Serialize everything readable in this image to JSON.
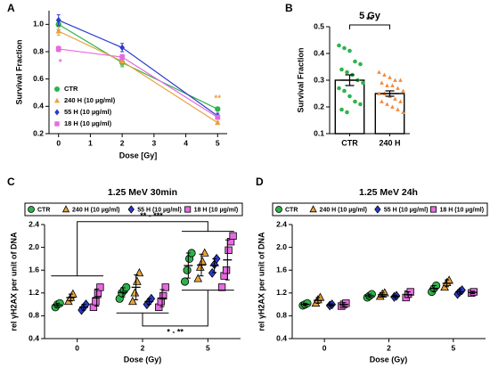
{
  "chart_data": [
    {
      "type": "line",
      "panel": "A",
      "xlabel": "Dose [Gy]",
      "ylabel": "Survival Fraction",
      "x": [
        0,
        2,
        5
      ],
      "xlim": [
        -0.3,
        5.3
      ],
      "xticks": [
        0,
        1,
        2,
        3,
        4,
        5
      ],
      "ylim": [
        0.2,
        1.1
      ],
      "yticks": [
        0.2,
        0.4,
        0.6,
        0.8,
        {
          "value": 1,
          "label": "1.0"
        }
      ],
      "series": [
        {
          "name": "CTR",
          "color": "#2db34a",
          "marker": "circle",
          "values": [
            1.0,
            0.72,
            0.38
          ],
          "errors": [
            0.04,
            0.03,
            0.01
          ]
        },
        {
          "name": "240 H (10 µg/ml)",
          "color": "#e8a33c",
          "marker": "triangle",
          "values": [
            0.95,
            0.73,
            0.28
          ],
          "errors": [
            0.03,
            0.03,
            0.01
          ]
        },
        {
          "name": "55 H (10 µg/ml)",
          "color": "#2a3ad0",
          "marker": "diamond",
          "values": [
            1.03,
            0.83,
            0.33
          ],
          "errors": [
            0.04,
            0.03,
            0.02
          ]
        },
        {
          "name": "18 H (10 µg/ml)",
          "color": "#e66be0",
          "marker": "square",
          "values": [
            0.82,
            0.76,
            0.32
          ],
          "errors": [
            0.02,
            0.02,
            0.01
          ]
        }
      ],
      "annotations": [
        "*",
        "**"
      ]
    },
    {
      "type": "bar",
      "panel": "B",
      "title": "5 Gy",
      "ylabel": "Survival Fraction",
      "categories": [
        "CTR",
        "240 H"
      ],
      "values": [
        0.3,
        0.25
      ],
      "errors": [
        0.02,
        0.01
      ],
      "colors": [
        "#2db34a",
        "#f5883a"
      ],
      "markers": [
        "circle",
        "triangle"
      ],
      "points": [
        [
          0.43,
          0.42,
          0.41,
          0.37,
          0.36,
          0.34,
          0.33,
          0.32,
          0.3,
          0.29,
          0.27,
          0.26,
          0.24,
          0.22,
          0.21,
          0.19,
          0.18
        ],
        [
          0.33,
          0.32,
          0.31,
          0.3,
          0.3,
          0.29,
          0.28,
          0.28,
          0.27,
          0.26,
          0.25,
          0.25,
          0.24,
          0.23,
          0.22,
          0.22,
          0.21,
          0.2,
          0.19,
          0.18
        ]
      ],
      "ylim": [
        0.1,
        0.5
      ],
      "yticks": [
        0.1,
        0.2,
        0.3,
        0.4,
        0.5
      ],
      "annotations": [
        "**"
      ]
    },
    {
      "type": "strip",
      "panel": "C",
      "title": "1.25 MeV 30min",
      "xlabel": "Dose (Gy)",
      "ylabel": "rel γH2AX  per unit of DNA",
      "categories": [
        "0",
        "2",
        "5"
      ],
      "ylim": [
        0.4,
        2.4
      ],
      "yticks": [
        0.4,
        0.8,
        1.2,
        1.6,
        {
          "value": 2,
          "label": "2.0"
        },
        2.4
      ],
      "series": [
        {
          "name": "CTR",
          "color": "#2db34a",
          "marker": "circle",
          "values": [
            [
              0.95,
              1.0,
              1.02
            ],
            [
              1.1,
              1.2,
              1.25,
              1.3
            ],
            [
              1.4,
              1.6,
              1.8,
              1.9
            ]
          ],
          "means": [
            0.99,
            1.21,
            1.68
          ],
          "errors": [
            0.03,
            0.08,
            0.22
          ]
        },
        {
          "name": "240 H (10 µg/ml)",
          "color": "#e8a33c",
          "marker": "triangle",
          "values": [
            [
              1.05,
              1.12,
              1.18
            ],
            [
              1.05,
              1.2,
              1.4,
              1.55
            ],
            [
              1.45,
              1.65,
              1.75,
              1.9
            ]
          ],
          "means": [
            1.12,
            1.3,
            1.69
          ],
          "errors": [
            0.06,
            0.22,
            0.19
          ]
        },
        {
          "name": "55 H (10 µg/ml)",
          "color": "#2a3ad0",
          "marker": "diamond",
          "values": [
            [
              0.9,
              0.95,
              1.0
            ],
            [
              1.0,
              1.05,
              1.1
            ],
            [
              1.55,
              1.7,
              1.8
            ]
          ],
          "means": [
            0.95,
            1.05,
            1.68
          ],
          "errors": [
            0.05,
            0.05,
            0.12
          ]
        },
        {
          "name": "18 H (10 µg/ml)",
          "color": "#e66be0",
          "marker": "square",
          "values": [
            [
              0.95,
              1.05,
              1.2,
              1.3
            ],
            [
              0.95,
              1.05,
              1.15,
              1.3
            ],
            [
              1.3,
              1.5,
              1.6,
              1.95,
              2.1,
              2.2
            ]
          ],
          "means": [
            1.12,
            1.11,
            1.78
          ],
          "errors": [
            0.15,
            0.15,
            0.35
          ]
        }
      ],
      "annotations": [
        "** - ***",
        "* - **"
      ]
    },
    {
      "type": "strip",
      "panel": "D",
      "title": "1.25 MeV 24h",
      "xlabel": "Dose (Gy)",
      "ylabel": "rel γH2AX  per unit of DNA",
      "categories": [
        "0",
        "2",
        "5"
      ],
      "ylim": [
        0.4,
        2.4
      ],
      "yticks": [
        0.4,
        0.8,
        1.2,
        1.6,
        {
          "value": 2,
          "label": "2.0"
        },
        2.4
      ],
      "series": [
        {
          "name": "CTR",
          "color": "#2db34a",
          "marker": "circle",
          "values": [
            [
              0.98,
              1.0,
              1.02
            ],
            [
              1.12,
              1.15,
              1.18
            ],
            [
              1.22,
              1.28,
              1.33
            ]
          ],
          "means": [
            1.0,
            1.15,
            1.28
          ],
          "errors": [
            0.02,
            0.03,
            0.05
          ]
        },
        {
          "name": "240 H (10 µg/ml)",
          "color": "#e8a33c",
          "marker": "triangle",
          "values": [
            [
              1.02,
              1.08,
              1.12
            ],
            [
              1.14,
              1.18,
              1.2
            ],
            [
              1.3,
              1.38,
              1.42
            ]
          ],
          "means": [
            1.07,
            1.17,
            1.37
          ],
          "errors": [
            0.05,
            0.03,
            0.06
          ]
        },
        {
          "name": "55 H (10 µg/ml)",
          "color": "#2a3ad0",
          "marker": "diamond",
          "values": [
            [
              0.98,
              1.0
            ],
            [
              1.13,
              1.15
            ],
            [
              1.18,
              1.22,
              1.25
            ]
          ],
          "means": [
            0.99,
            1.14,
            1.22
          ],
          "errors": [
            0.02,
            0.02,
            0.04
          ]
        },
        {
          "name": "18 H (10 µg/ml)",
          "color": "#e66be0",
          "marker": "square",
          "values": [
            [
              0.97,
              1.0,
              1.02
            ],
            [
              1.12,
              1.18,
              1.22
            ],
            [
              1.2,
              1.22
            ]
          ],
          "means": [
            1.0,
            1.17,
            1.21
          ],
          "errors": [
            0.03,
            0.05,
            0.02
          ]
        }
      ]
    }
  ]
}
